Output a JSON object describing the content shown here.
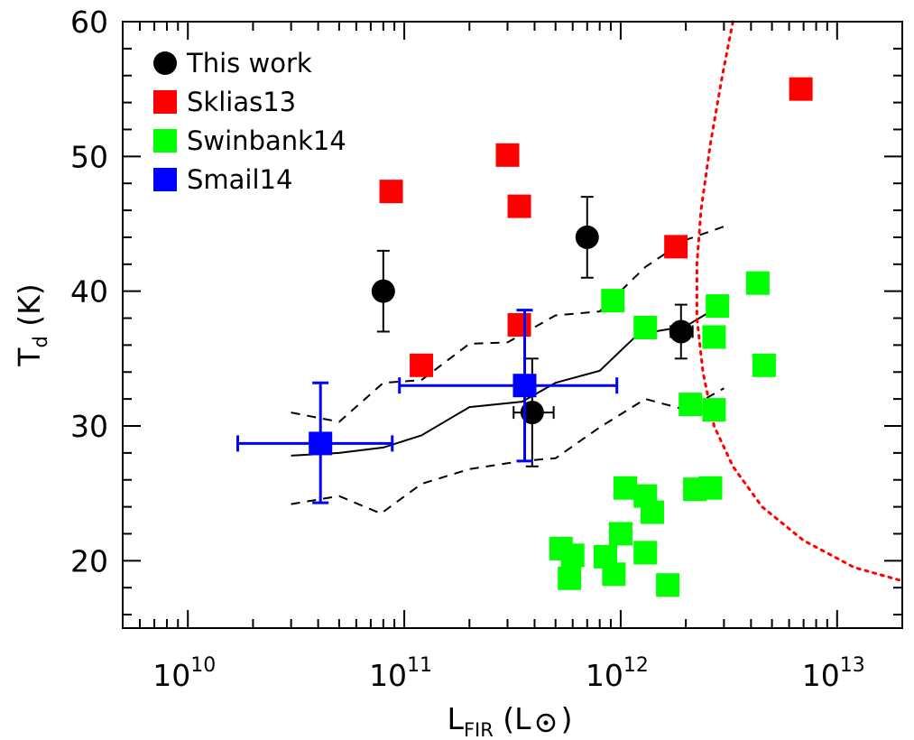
{
  "chart_data": {
    "type": "scatter",
    "xscale": "log",
    "xlim": [
      5000000000.0,
      20000000000000.0
    ],
    "ylim": [
      15,
      60
    ],
    "xlabel": {
      "main": "L",
      "sub": "FIR",
      "unit_open": "(L",
      "unit_close": ")"
    },
    "ylabel": {
      "main": "T",
      "sub": "d",
      "unit": "(K)"
    },
    "xticks": [
      {
        "value": 10000000000.0,
        "base": "10",
        "exp": "10"
      },
      {
        "value": 100000000000.0,
        "base": "10",
        "exp": "11"
      },
      {
        "value": 1000000000000.0,
        "base": "10",
        "exp": "12"
      },
      {
        "value": 10000000000000.0,
        "base": "10",
        "exp": "13"
      }
    ],
    "yticks": [
      20,
      30,
      40,
      50,
      60
    ],
    "legend": [
      {
        "label": "This work",
        "marker": "circle",
        "color": "#000000"
      },
      {
        "label": "Sklias13",
        "marker": "square",
        "color": "#ff0000"
      },
      {
        "label": "Swinbank14",
        "marker": "square",
        "color": "#00ff00"
      },
      {
        "label": "Smail14",
        "marker": "square",
        "color": "#0000ff"
      }
    ],
    "series": [
      {
        "name": "This work",
        "marker": "circle",
        "color": "#000000",
        "points": [
          {
            "x": 80000000000.0,
            "y": 40,
            "ylo": 37,
            "yhi": 43
          },
          {
            "x": 700000000000.0,
            "y": 44,
            "ylo": 41,
            "yhi": 47
          },
          {
            "x": 390000000000.0,
            "y": 31,
            "ylo": 27,
            "yhi": 35,
            "xlo": 320000000000.0,
            "xhi": 490000000000.0
          },
          {
            "x": 1900000000000.0,
            "y": 37,
            "ylo": 35,
            "yhi": 39,
            "xlo": 1700000000000.0,
            "xhi": 2150000000000.0
          }
        ]
      },
      {
        "name": "Sklias13",
        "marker": "square",
        "color": "#ff0000",
        "points": [
          {
            "x": 87000000000.0,
            "y": 47.4
          },
          {
            "x": 120000000000.0,
            "y": 34.5
          },
          {
            "x": 300000000000.0,
            "y": 50.1
          },
          {
            "x": 340000000000.0,
            "y": 46.3
          },
          {
            "x": 340000000000.0,
            "y": 37.5
          },
          {
            "x": 1800000000000.0,
            "y": 43.3
          },
          {
            "x": 6800000000000.0,
            "y": 55.0
          }
        ]
      },
      {
        "name": "Swinbank14",
        "marker": "square",
        "color": "#00ff00",
        "points": [
          {
            "x": 920000000000.0,
            "y": 39.3
          },
          {
            "x": 1300000000000.0,
            "y": 37.3
          },
          {
            "x": 2800000000000.0,
            "y": 38.9
          },
          {
            "x": 2700000000000.0,
            "y": 36.6
          },
          {
            "x": 4300000000000.0,
            "y": 40.6
          },
          {
            "x": 4600000000000.0,
            "y": 34.5
          },
          {
            "x": 2100000000000.0,
            "y": 31.6
          },
          {
            "x": 2700000000000.0,
            "y": 31.2
          },
          {
            "x": 2200000000000.0,
            "y": 25.3
          },
          {
            "x": 2600000000000.0,
            "y": 25.4
          },
          {
            "x": 1050000000000.0,
            "y": 25.4
          },
          {
            "x": 1300000000000.0,
            "y": 24.8
          },
          {
            "x": 1400000000000.0,
            "y": 23.6
          },
          {
            "x": 1000000000000.0,
            "y": 22.0
          },
          {
            "x": 530000000000.0,
            "y": 20.9
          },
          {
            "x": 600000000000.0,
            "y": 20.4
          },
          {
            "x": 850000000000.0,
            "y": 20.3
          },
          {
            "x": 1300000000000.0,
            "y": 20.6
          },
          {
            "x": 930000000000.0,
            "y": 19.0
          },
          {
            "x": 580000000000.0,
            "y": 18.7
          },
          {
            "x": 1650000000000.0,
            "y": 18.2
          }
        ]
      },
      {
        "name": "Smail14",
        "marker": "square",
        "color": "#0000ff",
        "points": [
          {
            "x": 41000000000.0,
            "y": 28.7,
            "ylo": 24.3,
            "yhi": 33.2,
            "xlo": 17000000000.0,
            "xhi": 88000000000.0
          },
          {
            "x": 360000000000.0,
            "y": 33.0,
            "ylo": 27.4,
            "yhi": 38.6,
            "xlo": 95000000000.0,
            "xhi": 960000000000.0
          }
        ]
      }
    ],
    "lines": [
      {
        "name": "median",
        "style": "solid",
        "color": "#000000",
        "points": [
          [
            30000000000.0,
            27.8
          ],
          [
            50000000000.0,
            28.0
          ],
          [
            80000000000.0,
            28.4
          ],
          [
            120000000000.0,
            29.3
          ],
          [
            200000000000.0,
            31.4
          ],
          [
            350000000000.0,
            31.8
          ],
          [
            500000000000.0,
            33.2
          ],
          [
            800000000000.0,
            34.1
          ],
          [
            1200000000000.0,
            36.8
          ],
          [
            2000000000000.0,
            37.4
          ],
          [
            3000000000000.0,
            39.1
          ]
        ]
      },
      {
        "name": "upper-bound",
        "style": "dashed",
        "color": "#000000",
        "points": [
          [
            30000000000.0,
            31.0
          ],
          [
            50000000000.0,
            30.3
          ],
          [
            80000000000.0,
            33.2
          ],
          [
            120000000000.0,
            33.4
          ],
          [
            200000000000.0,
            36.1
          ],
          [
            300000000000.0,
            36.2
          ],
          [
            500000000000.0,
            38.2
          ],
          [
            800000000000.0,
            38.5
          ],
          [
            1300000000000.0,
            41.8
          ],
          [
            2000000000000.0,
            43.8
          ],
          [
            3000000000000.0,
            44.8
          ]
        ]
      },
      {
        "name": "lower-bound",
        "style": "dashed",
        "color": "#000000",
        "points": [
          [
            30000000000.0,
            24.2
          ],
          [
            50000000000.0,
            24.8
          ],
          [
            78000000000.0,
            23.5
          ],
          [
            120000000000.0,
            25.7
          ],
          [
            200000000000.0,
            26.8
          ],
          [
            350000000000.0,
            27.4
          ],
          [
            500000000000.0,
            27.6
          ],
          [
            800000000000.0,
            29.9
          ],
          [
            1300000000000.0,
            32.0
          ],
          [
            2000000000000.0,
            31.2
          ],
          [
            3000000000000.0,
            32.8
          ]
        ]
      },
      {
        "name": "selection-limit",
        "style": "dotted",
        "color": "#ff0000",
        "points": [
          [
            3300000000000.0,
            60
          ],
          [
            2950000000000.0,
            56
          ],
          [
            2600000000000.0,
            51
          ],
          [
            2350000000000.0,
            46
          ],
          [
            2250000000000.0,
            42
          ],
          [
            2250000000000.0,
            38
          ],
          [
            2400000000000.0,
            34
          ],
          [
            2700000000000.0,
            30
          ],
          [
            3300000000000.0,
            27
          ],
          [
            4500000000000.0,
            24
          ],
          [
            7000000000000.0,
            21.5
          ],
          [
            12000000000000.0,
            19.5
          ],
          [
            20000000000000.0,
            18.5
          ]
        ]
      }
    ]
  }
}
